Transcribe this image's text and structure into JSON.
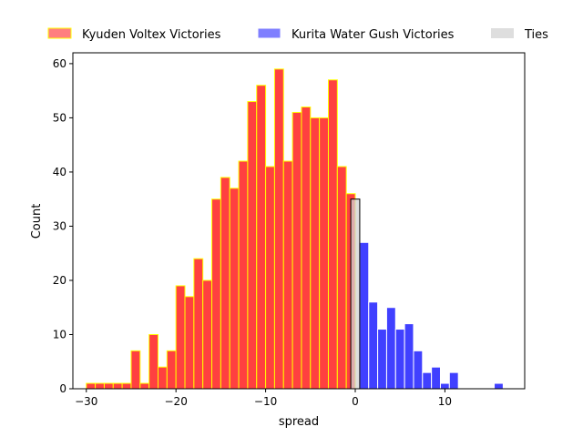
{
  "chart_data": {
    "type": "bar",
    "xlabel": "spread",
    "ylabel": "Count",
    "xlim": [
      -31.5,
      18.9
    ],
    "ylim": [
      0,
      62
    ],
    "xticks": [
      -30,
      -20,
      -10,
      0,
      10
    ],
    "yticks": [
      0,
      10,
      20,
      30,
      40,
      50,
      60
    ],
    "bin_width": 1,
    "legend_position": "top, outside plot area",
    "series": [
      {
        "name": "Kyuden Voltex Victories",
        "color": "#ff0000",
        "edge_color": "#ffff00",
        "opacity": 0.75,
        "bins": [
          {
            "x": -29.5,
            "y": 1
          },
          {
            "x": -28.5,
            "y": 1
          },
          {
            "x": -27.5,
            "y": 1
          },
          {
            "x": -26.5,
            "y": 1
          },
          {
            "x": -25.5,
            "y": 1
          },
          {
            "x": -24.5,
            "y": 7
          },
          {
            "x": -23.5,
            "y": 1
          },
          {
            "x": -22.5,
            "y": 10
          },
          {
            "x": -21.5,
            "y": 4
          },
          {
            "x": -20.5,
            "y": 7
          },
          {
            "x": -19.5,
            "y": 19
          },
          {
            "x": -18.5,
            "y": 17
          },
          {
            "x": -17.5,
            "y": 24
          },
          {
            "x": -16.5,
            "y": 20
          },
          {
            "x": -15.5,
            "y": 35
          },
          {
            "x": -14.5,
            "y": 39
          },
          {
            "x": -13.5,
            "y": 37
          },
          {
            "x": -12.5,
            "y": 42
          },
          {
            "x": -11.5,
            "y": 53
          },
          {
            "x": -10.5,
            "y": 56
          },
          {
            "x": -9.5,
            "y": 41
          },
          {
            "x": -8.5,
            "y": 59
          },
          {
            "x": -7.5,
            "y": 42
          },
          {
            "x": -6.5,
            "y": 51
          },
          {
            "x": -5.5,
            "y": 52
          },
          {
            "x": -4.5,
            "y": 50
          },
          {
            "x": -3.5,
            "y": 50
          },
          {
            "x": -2.5,
            "y": 57
          },
          {
            "x": -1.5,
            "y": 41
          },
          {
            "x": -0.5,
            "y": 36
          }
        ]
      },
      {
        "name": "Kurita Water Gush Victories",
        "color": "#0000ff",
        "edge_color": "#ffffff",
        "opacity": 0.75,
        "bins": [
          {
            "x": 1.0,
            "y": 27
          },
          {
            "x": 2.0,
            "y": 16
          },
          {
            "x": 3.0,
            "y": 11
          },
          {
            "x": 4.0,
            "y": 15
          },
          {
            "x": 5.0,
            "y": 11
          },
          {
            "x": 6.0,
            "y": 12
          },
          {
            "x": 7.0,
            "y": 7
          },
          {
            "x": 8.0,
            "y": 3
          },
          {
            "x": 9.0,
            "y": 4
          },
          {
            "x": 10.0,
            "y": 1
          },
          {
            "x": 11.0,
            "y": 3
          },
          {
            "x": 16.0,
            "y": 1
          }
        ]
      },
      {
        "name": "Ties",
        "color": "#d3d3d3",
        "edge_color": "#000000",
        "opacity": 0.75,
        "bins": [
          {
            "x": 0.0,
            "y": 35
          }
        ]
      }
    ]
  }
}
